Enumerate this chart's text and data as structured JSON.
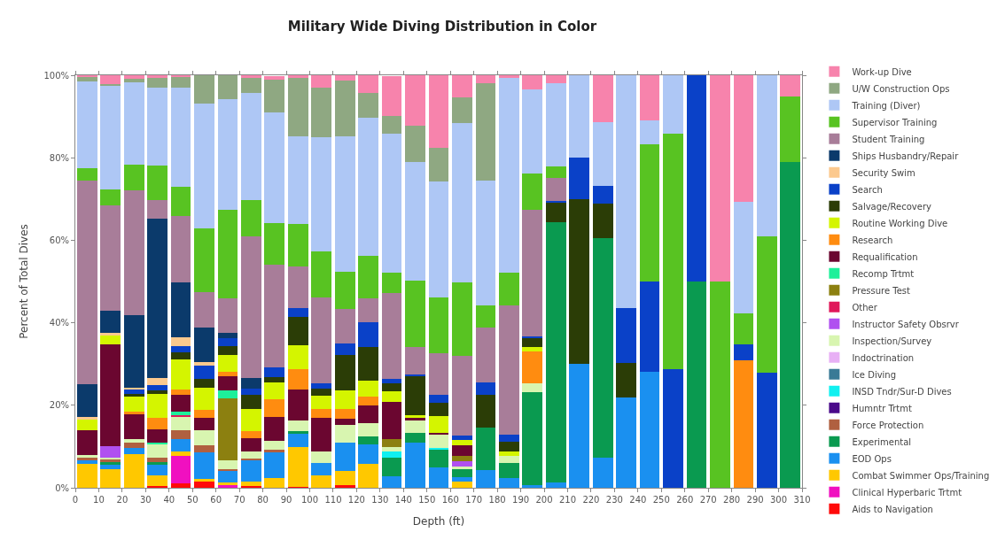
{
  "chart_data": {
    "type": "bar",
    "title": "Military Wide Diving Distribution in Color",
    "xlabel": "Depth (ft)",
    "ylabel": "Percent of Total Dives",
    "stacked": true,
    "legend": "right",
    "x": [
      5,
      15,
      25,
      35,
      45,
      55,
      65,
      75,
      85,
      95,
      105,
      115,
      125,
      135,
      145,
      155,
      165,
      175,
      185,
      195,
      205,
      215,
      225,
      235,
      245,
      255,
      265,
      275,
      285,
      295,
      305
    ],
    "xlim": [
      0,
      310
    ],
    "xticks": [
      0,
      10,
      20,
      30,
      40,
      50,
      60,
      70,
      80,
      90,
      100,
      110,
      120,
      130,
      140,
      150,
      160,
      170,
      180,
      190,
      200,
      210,
      220,
      230,
      240,
      250,
      260,
      270,
      280,
      290,
      300,
      310
    ],
    "ylim": [
      0,
      100
    ],
    "yticks": [
      {
        "value": 0,
        "label": "0%"
      },
      {
        "value": 20,
        "label": "20%"
      },
      {
        "value": 40,
        "label": "40%"
      },
      {
        "value": 60,
        "label": "60%"
      },
      {
        "value": 80,
        "label": "80%"
      },
      {
        "value": 100,
        "label": "100%"
      }
    ],
    "series": [
      {
        "name": "Aids to Navigation",
        "color": "#ff0a0a",
        "values": [
          0,
          0,
          0,
          0.5,
          1,
          1.6,
          0,
          0.5,
          null,
          0.3,
          0,
          0.6,
          0,
          0,
          0,
          0,
          0,
          0,
          0,
          0,
          0,
          0,
          0,
          0,
          0,
          0,
          0,
          0,
          0,
          0,
          0
        ]
      },
      {
        "name": "Clinical Hyperbaric Trtmt",
        "color": "#f010c0",
        "values": [
          0,
          0,
          0,
          0,
          6.7,
          0,
          0.7,
          0,
          0,
          0,
          0,
          0,
          0,
          0,
          0,
          0,
          0,
          0,
          0,
          0,
          0,
          0,
          0,
          0,
          0,
          0,
          0,
          0,
          0,
          0,
          0
        ]
      },
      {
        "name": "Combat Swimmer Ops/Training",
        "color": "#ffc800",
        "values": [
          5.9,
          4.5,
          8.1,
          2.5,
          1.1,
          0.6,
          0.5,
          1.1,
          2.4,
          9.6,
          3.1,
          3.4,
          5.9,
          0,
          0,
          0,
          1.5,
          0,
          0,
          0,
          0,
          0,
          0,
          0,
          0,
          0,
          0,
          0,
          0,
          0,
          0
        ]
      },
      {
        "name": "EOD Ops",
        "color": "#1a90f0",
        "values": [
          0.7,
          1.1,
          1.6,
          2.5,
          2.9,
          6.3,
          2.9,
          5.1,
          6.1,
          3.2,
          3,
          7,
          4.7,
          2.7,
          10.9,
          4.9,
          1,
          4.4,
          2.4,
          0.6,
          1.3,
          30.1,
          7.2,
          21.8,
          28.1,
          0,
          0,
          0,
          0,
          0,
          0
        ]
      },
      {
        "name": "Experimental",
        "color": "#0a9a50",
        "values": [
          0,
          0.7,
          0,
          0.7,
          0,
          0,
          0,
          0,
          0,
          0.6,
          0,
          0,
          1.8,
          4.6,
          2.5,
          4.3,
          2,
          10.3,
          3.6,
          22.5,
          63,
          0,
          53.4,
          0,
          0,
          0,
          50.1,
          0,
          0,
          0,
          78.9
        ]
      },
      {
        "name": "Force Protection",
        "color": "#b06040",
        "values": [
          0.6,
          0.5,
          1.3,
          1.1,
          2.2,
          1.8,
          0.5,
          0.4,
          0.7,
          0,
          0,
          0,
          0,
          0,
          0,
          0,
          0,
          0,
          0,
          0,
          0,
          0,
          0,
          0,
          0,
          0,
          0,
          0,
          0,
          0,
          0
        ]
      },
      {
        "name": "Humntr Trtmt",
        "color": "#4a0a8a",
        "values": [
          0,
          0,
          0,
          0,
          0,
          0,
          0,
          0,
          0,
          0,
          0,
          0,
          0,
          0,
          0,
          0,
          0,
          0,
          0,
          0,
          0,
          0,
          0,
          0,
          0,
          0,
          0,
          0,
          0,
          0,
          0
        ]
      },
      {
        "name": "INSD Tndr/Sur-D Dives",
        "color": "#10f0f0",
        "values": [
          0,
          0,
          0,
          0,
          0,
          0,
          0,
          0,
          0,
          0,
          0,
          0,
          0,
          1.4,
          0,
          0.5,
          0,
          0,
          0,
          0,
          0,
          0,
          0,
          0,
          0,
          0,
          0,
          0,
          0,
          0,
          0
        ]
      },
      {
        "name": "Ice Diving",
        "color": "#3a7a96",
        "values": [
          0,
          0,
          0,
          0,
          0,
          0,
          0,
          0,
          0,
          0,
          0,
          0,
          0,
          0,
          0,
          0,
          0,
          0,
          0,
          0,
          0,
          0,
          0,
          0,
          0,
          0,
          0,
          0,
          0,
          0,
          0
        ]
      },
      {
        "name": "Indoctrination",
        "color": "#e8b0f5",
        "values": [
          0,
          0,
          0,
          0,
          0,
          0,
          0,
          0,
          0,
          0,
          0,
          0,
          0,
          0,
          0,
          0,
          0,
          0,
          0,
          0,
          0,
          0,
          0,
          0,
          0,
          0,
          0,
          0,
          0,
          0,
          0
        ]
      },
      {
        "name": "Inspection/Survey",
        "color": "#d8f5b0",
        "values": [
          0.7,
          0.6,
          0.9,
          3.2,
          3.4,
          3.6,
          2,
          1.8,
          2.2,
          2.6,
          2.7,
          4.3,
          3.2,
          1.1,
          2.9,
          3.1,
          0.7,
          0,
          1.8,
          2.3,
          0,
          0,
          0,
          0,
          0,
          0,
          0,
          0,
          0,
          0,
          0
        ]
      },
      {
        "name": "Instructor Safety Obsrvr",
        "color": "#b050f0",
        "values": [
          0,
          2.7,
          0,
          0,
          0,
          0,
          0,
          0,
          0,
          0,
          0,
          0,
          0,
          0,
          0,
          0,
          1.3,
          0,
          0,
          0,
          0,
          0,
          0,
          0,
          0,
          0,
          0,
          0,
          0,
          0,
          0
        ]
      },
      {
        "name": "Other",
        "color": "#e0185a",
        "values": [
          0,
          0,
          0,
          0,
          0.3,
          0,
          0,
          0,
          0,
          0,
          0,
          0,
          0,
          0,
          0,
          0,
          0,
          0,
          0,
          0,
          0,
          0,
          0,
          0,
          0,
          0,
          0,
          0,
          0,
          0,
          0
        ]
      },
      {
        "name": "Pressure Test",
        "color": "#8c8010",
        "values": [
          0,
          0,
          0,
          0,
          0,
          0,
          15,
          0,
          0,
          0,
          0,
          0,
          0,
          2.1,
          0,
          0,
          1.2,
          0,
          0,
          0,
          0,
          0,
          0,
          0,
          0,
          0,
          0,
          0,
          0,
          0,
          0
        ]
      },
      {
        "name": "Recomp Trtmt",
        "color": "#1ef09a",
        "values": [
          0,
          0,
          0,
          0.5,
          0.9,
          0,
          1.9,
          0,
          0,
          0,
          0,
          0,
          0,
          0,
          0,
          0,
          0,
          0,
          0,
          0,
          0,
          0,
          0,
          0,
          0,
          0,
          0,
          0,
          0,
          0,
          0
        ]
      },
      {
        "name": "Requalification",
        "color": "#6b0630",
        "values": [
          6,
          24.7,
          5.9,
          3.1,
          4,
          3,
          3.6,
          3.2,
          5.8,
          7.5,
          8.2,
          1.4,
          4.3,
          8.9,
          0.7,
          0.5,
          2.5,
          0,
          0,
          0,
          0,
          0,
          0,
          0,
          0,
          0,
          0,
          0,
          0,
          0,
          0
        ]
      },
      {
        "name": "Research",
        "color": "#ff8c10",
        "values": [
          0,
          0,
          0.7,
          2.9,
          1.4,
          2,
          1.1,
          1.6,
          4.2,
          4.9,
          2.1,
          2.3,
          2.1,
          0,
          0,
          0,
          0,
          0,
          0,
          7.7,
          0,
          0,
          0,
          0,
          0,
          0,
          0,
          0,
          30.8,
          0,
          0
        ]
      },
      {
        "name": "Routine Working Dive",
        "color": "#d4f500",
        "values": [
          2.7,
          2.2,
          3.6,
          5.7,
          7.2,
          5.4,
          4,
          5.3,
          4.1,
          5.9,
          3.2,
          4.7,
          3.9,
          2.5,
          0.7,
          4,
          1.4,
          0,
          1.1,
          1.1,
          0,
          0,
          0,
          0,
          0,
          0,
          0,
          0,
          0,
          0,
          0
        ]
      },
      {
        "name": "Salvage/Recovery",
        "color": "#2b3d06",
        "values": [
          0,
          0,
          0.7,
          0.9,
          1.8,
          2.2,
          2.2,
          3.6,
          1.4,
          6.8,
          1.8,
          8.4,
          8.2,
          2.1,
          9.3,
          3.4,
          0,
          7.9,
          2.3,
          2.1,
          5,
          39.8,
          8.2,
          8.4,
          0,
          0,
          0,
          0,
          0,
          0,
          0
        ]
      },
      {
        "name": "Search",
        "color": "#0a41c8",
        "values": [
          0,
          0,
          1.1,
          1.3,
          1.4,
          3.2,
          1.8,
          1.4,
          2.2,
          2.2,
          1.2,
          2.9,
          6.1,
          1.1,
          0.5,
          1.9,
          1.1,
          2.9,
          1.6,
          0.5,
          0.3,
          10.2,
          4.4,
          13.4,
          22,
          28.7,
          49.9,
          0,
          3.9,
          28,
          0
        ]
      },
      {
        "name": "Security Swim",
        "color": "#fcc98e",
        "values": [
          0.5,
          0.5,
          0.4,
          1.8,
          2.2,
          0.7,
          0,
          0,
          0,
          0,
          0,
          0,
          0,
          0,
          0,
          0,
          0,
          0,
          0,
          0,
          0,
          0,
          0,
          0,
          0,
          0,
          0,
          0,
          0,
          0,
          0
        ]
      },
      {
        "name": "Ships Husbandry/Repair",
        "color": "#0b3a6b",
        "values": [
          8,
          5.4,
          17.5,
          38.6,
          13.2,
          8.4,
          1.4,
          2.7,
          0,
          0,
          0,
          0,
          0,
          0,
          0,
          0,
          0,
          0,
          0,
          0,
          0,
          0,
          0,
          0,
          0,
          0,
          0,
          0,
          0,
          0,
          0
        ]
      },
      {
        "name": "Student Training",
        "color": "#a87d99",
        "values": [
          49.3,
          25.6,
          30.4,
          4.5,
          16.2,
          8.7,
          8.4,
          34.3,
          24.9,
          10,
          20.8,
          8.4,
          5.7,
          20.7,
          6.7,
          10,
          19.3,
          13.3,
          31.5,
          30.6,
          5.6,
          0,
          0,
          0,
          0,
          0,
          0,
          0,
          0,
          0,
          0
        ]
      },
      {
        "name": "Supervisor Training",
        "color": "#58c322",
        "values": [
          3,
          3.8,
          6.1,
          8.3,
          7.1,
          15.4,
          21.4,
          8.8,
          10.1,
          10.4,
          11.2,
          9,
          10.4,
          5,
          16,
          13.6,
          17.7,
          5.4,
          7.8,
          8.7,
          2.6,
          0,
          0,
          0,
          33.2,
          57.2,
          0,
          50.1,
          7.6,
          33,
          15.9
        ]
      },
      {
        "name": "Training (Diver)",
        "color": "#aec7f5",
        "values": [
          21,
          25.1,
          19.9,
          19,
          24.1,
          30.3,
          26.8,
          25.9,
          26.9,
          21.1,
          27.7,
          32.7,
          33.3,
          33.6,
          28.7,
          28.1,
          38.8,
          30.2,
          47.2,
          20.5,
          20.3,
          19.8,
          15.5,
          56.3,
          5.7,
          14.1,
          0,
          0,
          27,
          39,
          0
        ]
      },
      {
        "name": "U/W Construction Ops",
        "color": "#8fa882",
        "values": [
          1.2,
          0.5,
          1,
          2.3,
          2.5,
          6.8,
          5.8,
          3.6,
          8,
          14.3,
          12.1,
          13.6,
          6.1,
          4.3,
          8.9,
          8.1,
          6.1,
          23.6,
          0,
          0,
          0,
          0,
          0,
          0,
          0,
          0,
          0,
          0,
          0,
          0,
          0
        ]
      },
      {
        "name": "Work-up Dive",
        "color": "#f783ac",
        "values": [
          0.4,
          2.1,
          0.8,
          0.6,
          0.4,
          0,
          0,
          0.7,
          0.7,
          0.7,
          2.9,
          1.4,
          4.3,
          9.7,
          12.2,
          17.6,
          5.4,
          2,
          0.7,
          3.4,
          1.9,
          0,
          11.2,
          0,
          10.9,
          0,
          0,
          49.9,
          30.8,
          0,
          5.2
        ]
      }
    ]
  }
}
